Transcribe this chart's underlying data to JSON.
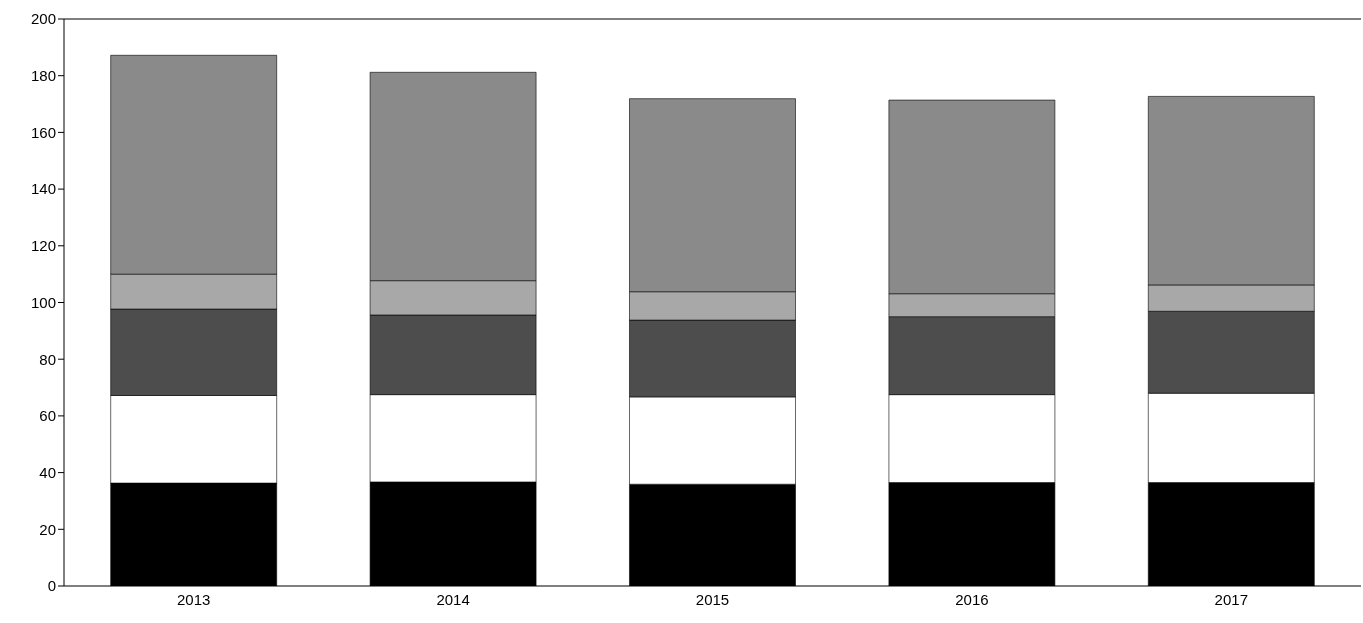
{
  "chart_data": {
    "type": "bar",
    "stacked": true,
    "categories": [
      "2013",
      "2014",
      "2015",
      "2016",
      "2017"
    ],
    "series": [
      {
        "color": "#000000",
        "values": [
          36.3,
          36.7,
          35.9,
          36.5,
          36.5
        ]
      },
      {
        "color": "#ffffff",
        "values": [
          30.9,
          30.8,
          30.8,
          31,
          31.5
        ]
      },
      {
        "color": "#4d4d4d",
        "values": [
          30.5,
          28.1,
          27.1,
          27.5,
          28.9
        ]
      },
      {
        "color": "#a8a8a8",
        "values": [
          12.3,
          12.1,
          10,
          8.1,
          9.3
        ]
      },
      {
        "color": "#8a8a8a",
        "values": [
          77.2,
          73.5,
          68.1,
          68.3,
          66.5
        ]
      }
    ],
    "ylim": [
      0,
      200
    ],
    "yticks": [
      0,
      20,
      40,
      60,
      80,
      100,
      120,
      140,
      160,
      180,
      200
    ],
    "grid": false,
    "legend": false
  }
}
